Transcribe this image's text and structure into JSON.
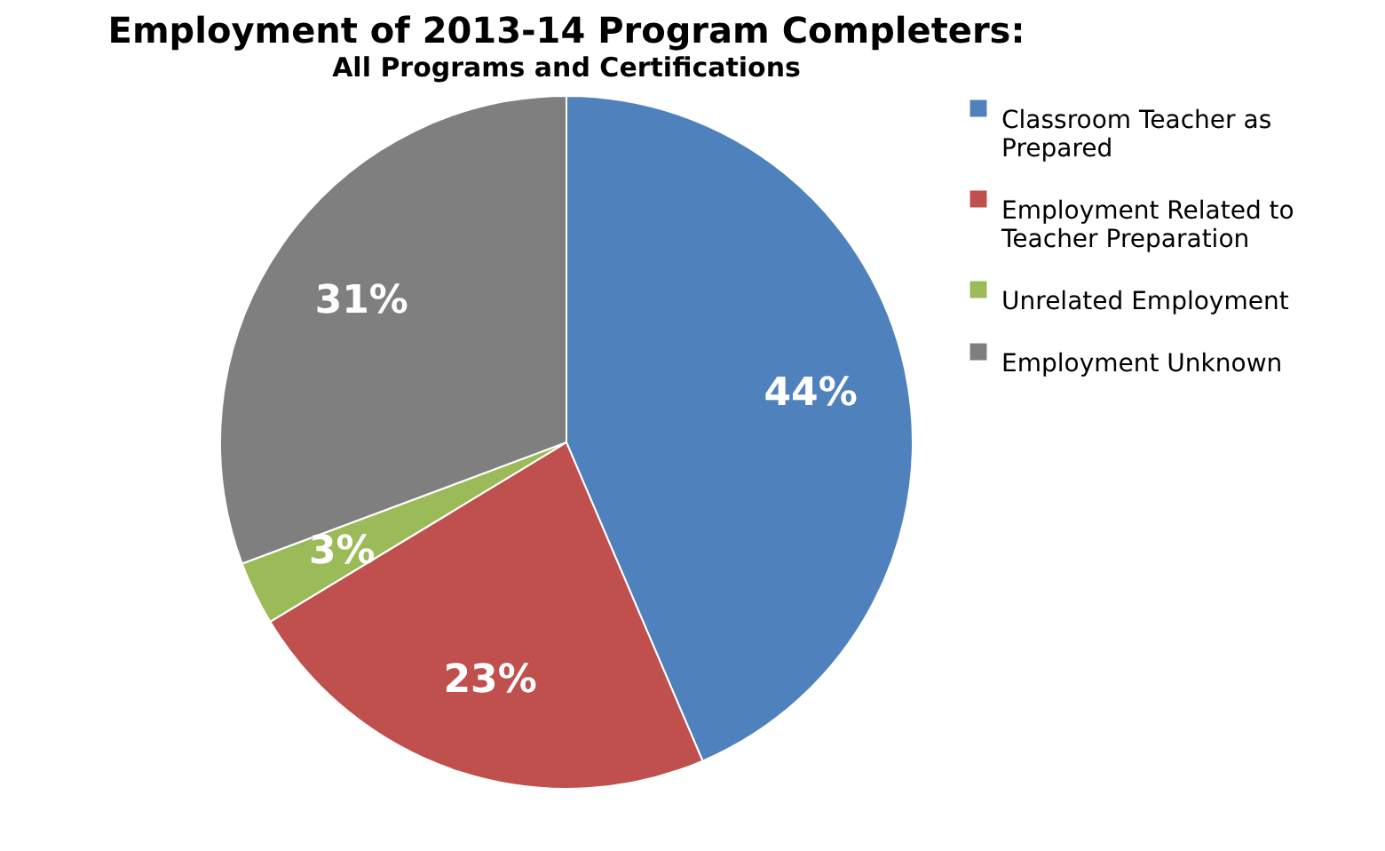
{
  "chart_data": {
    "type": "pie",
    "title": "Employment of 2013-14 Program Completers:",
    "subtitle": "All Programs and Certifications",
    "categories": [
      "Classroom Teacher as Prepared",
      "Employment Related to Teacher Preparation",
      "Unrelated Employment",
      "Employment Unknown"
    ],
    "values": [
      44,
      23,
      3,
      31
    ],
    "colors": [
      "#4f81bd",
      "#c0504d",
      "#9bbb59",
      "#7f7f7f"
    ],
    "value_labels": [
      "44%",
      "23%",
      "3%",
      "31%"
    ],
    "legend": "right"
  }
}
